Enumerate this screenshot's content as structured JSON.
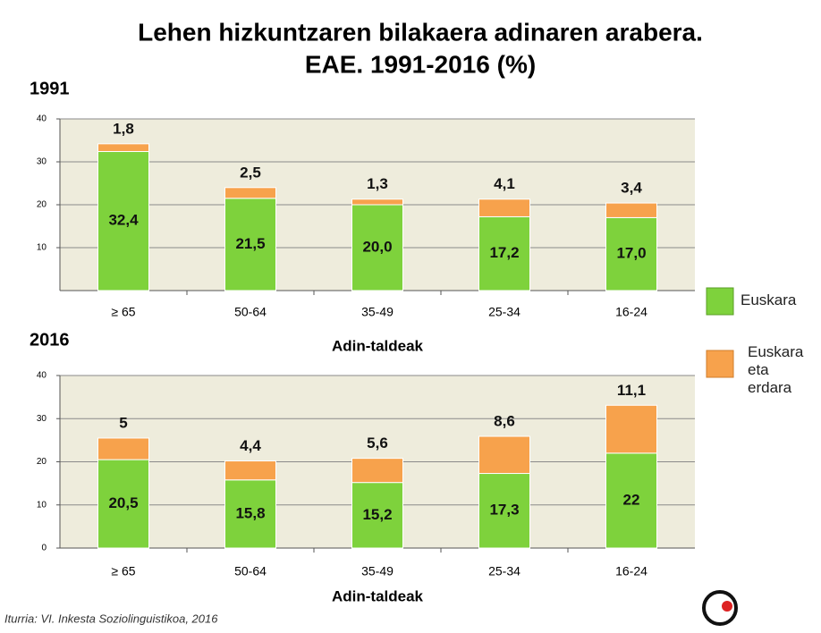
{
  "title": [
    "Lehen hizkuntzaren bilakaera adinaren arabera.",
    "EAE. 1991-2016 (%)"
  ],
  "source": "Iturria: VI. Inkesta Soziolinguistikoa, 2016",
  "chart_data": [
    {
      "type": "stacked_bar",
      "title": "1991",
      "x_label": "Adin-taldeak",
      "categories": [
        "≥ 65",
        "50-64",
        "35-49",
        "25-34",
        "16-24"
      ],
      "series": [
        {
          "name": "Euskara",
          "color": "#7ed23c",
          "values": [
            32.4,
            21.5,
            20.0,
            17.2,
            17.0
          ],
          "value_labels": [
            "32,4",
            "21,5",
            "20,0",
            "17,2",
            "17,0"
          ]
        },
        {
          "name": "Euskara eta erdara",
          "color": "#f7a24c",
          "values": [
            1.8,
            2.5,
            1.3,
            4.1,
            3.4
          ],
          "value_labels": [
            "1,8",
            "2,5",
            "1,3",
            "4,1",
            "3,4"
          ]
        }
      ],
      "ylim": [
        0,
        40
      ],
      "yticks": [
        10,
        20,
        30,
        40
      ],
      "grid": true
    },
    {
      "type": "stacked_bar",
      "title": "2016",
      "x_label": "Adin-taldeak",
      "categories": [
        "≥ 65",
        "50-64",
        "35-49",
        "25-34",
        "16-24"
      ],
      "series": [
        {
          "name": "Euskara",
          "color": "#7ed23c",
          "values": [
            20.5,
            15.8,
            15.2,
            17.3,
            22
          ],
          "value_labels": [
            "20,5",
            "15,8",
            "15,2",
            "17,3",
            "22"
          ]
        },
        {
          "name": "Euskara eta erdara",
          "color": "#f7a24c",
          "values": [
            5,
            4.4,
            5.6,
            8.6,
            11.1
          ],
          "value_labels": [
            "5",
            "4,4",
            "5,6",
            "8,6",
            "11,1"
          ]
        }
      ],
      "ylim": [
        0,
        40
      ],
      "yticks": [
        0,
        10,
        20,
        30,
        40
      ],
      "grid": true
    }
  ]
}
